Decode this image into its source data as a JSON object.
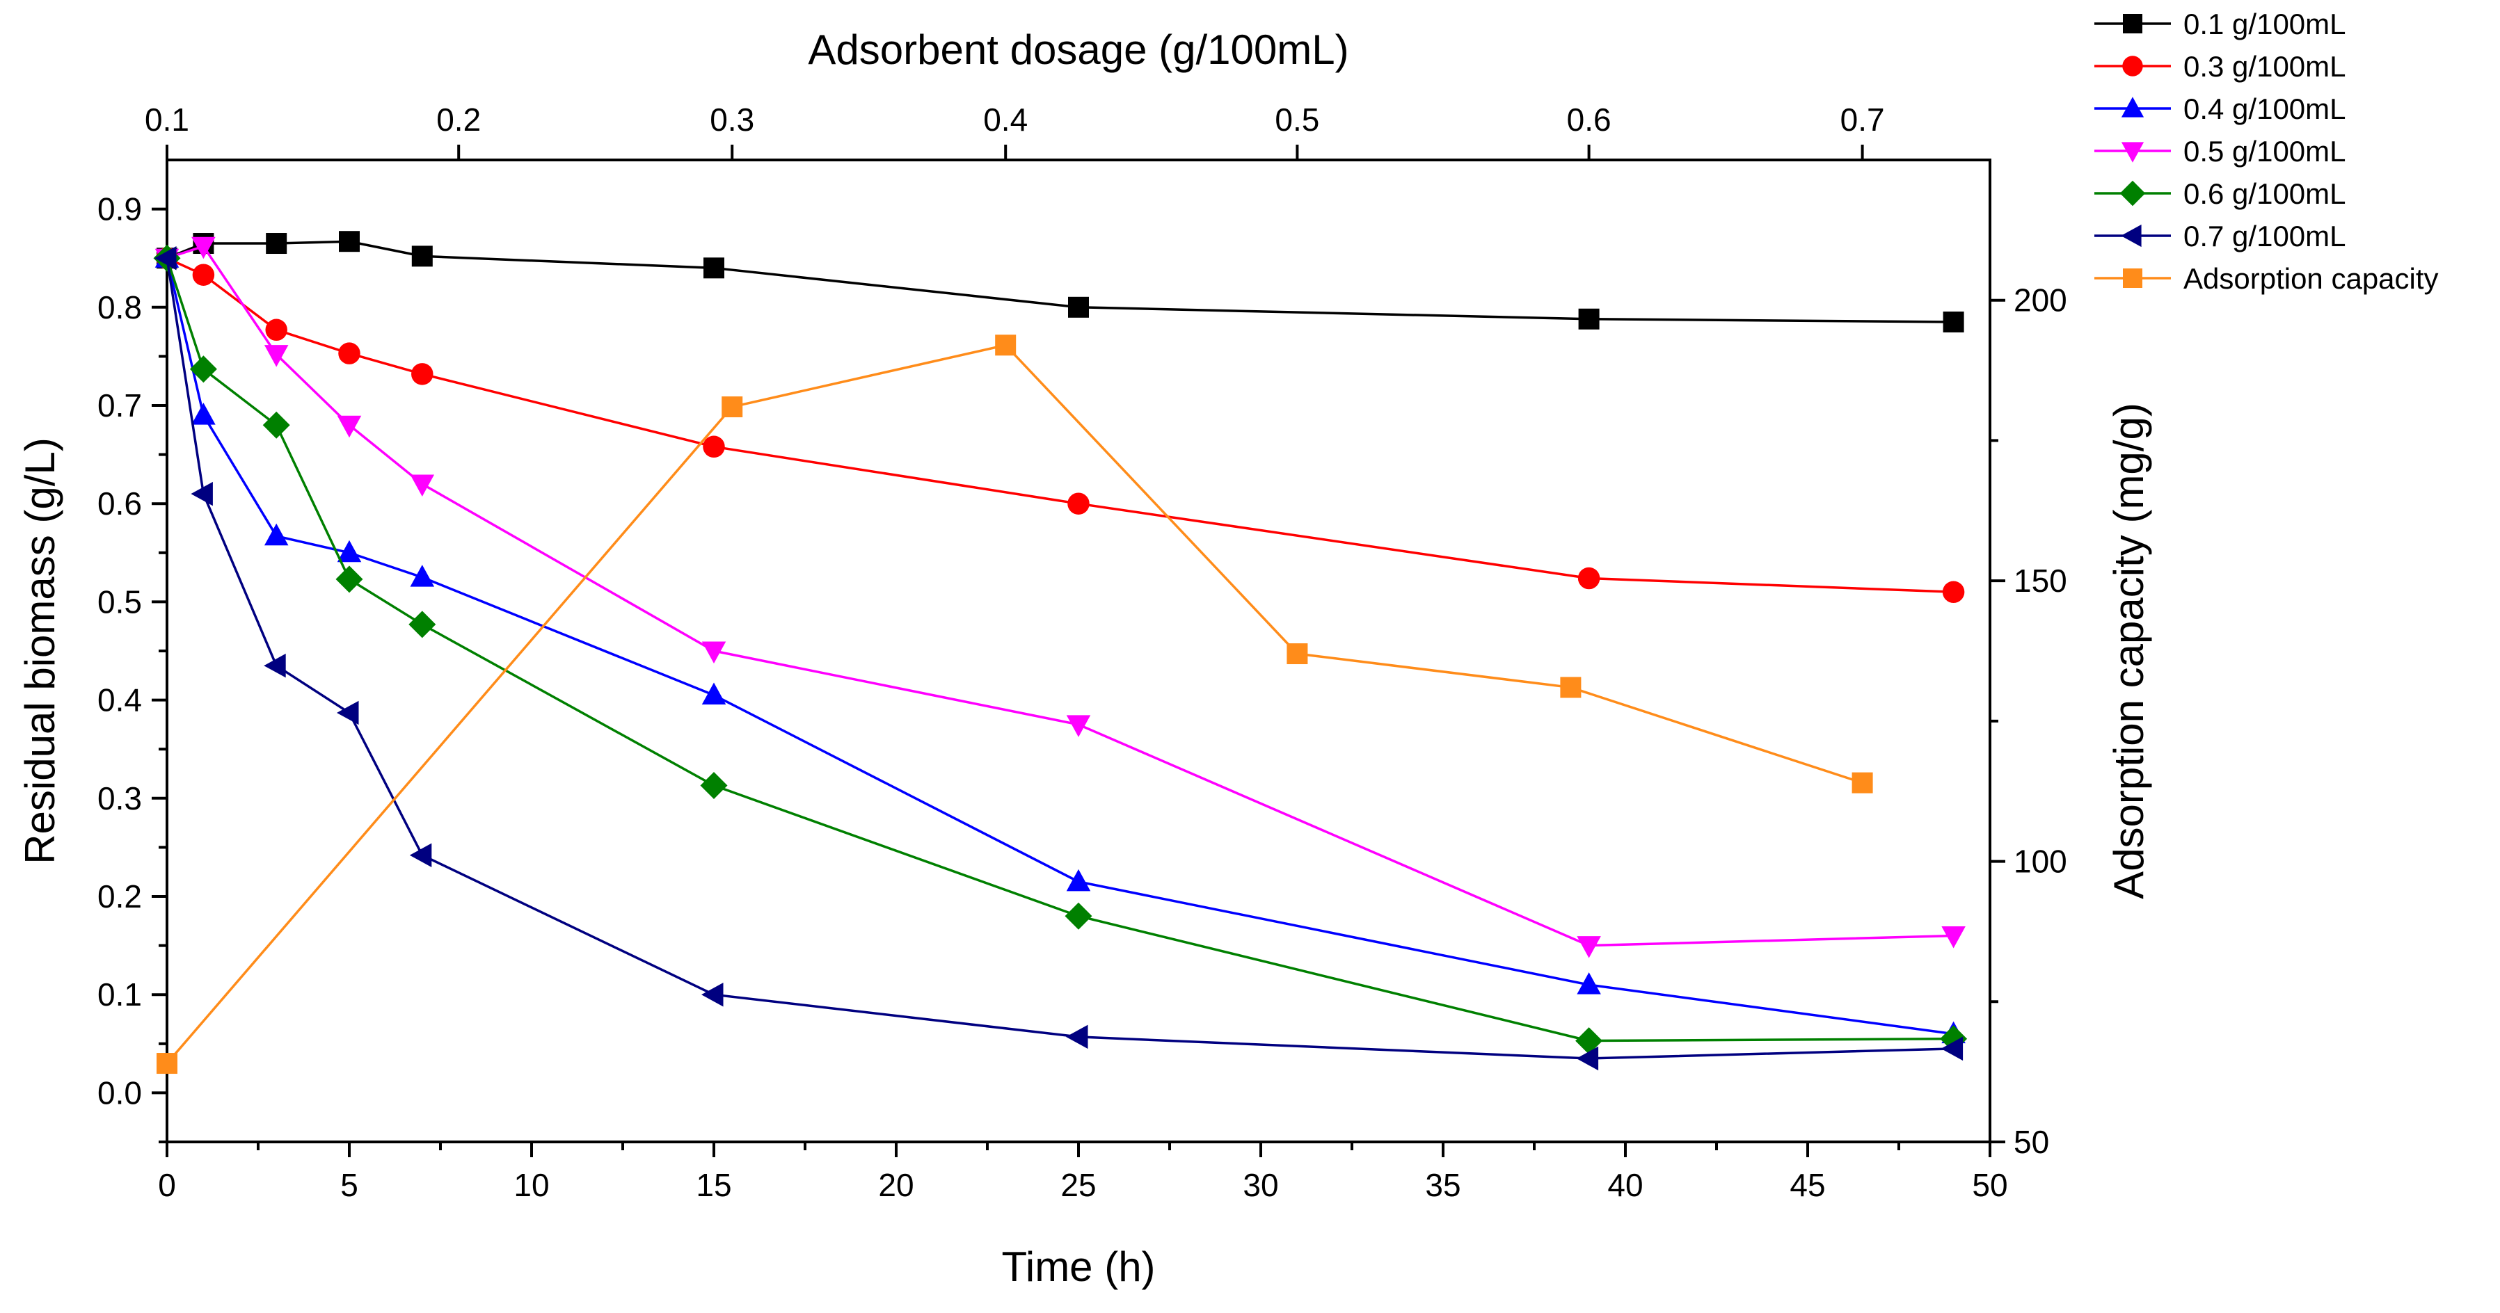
{
  "chart_data": {
    "type": "line",
    "x_bottom": {
      "label": "Time (h)",
      "lim": [
        0,
        50
      ],
      "ticks": [
        0,
        5,
        10,
        15,
        20,
        25,
        30,
        35,
        40,
        45,
        50
      ]
    },
    "x_top": {
      "label": "Adsorbent dosage (g/100mL)",
      "ticks": [
        {
          "label": "0.1",
          "time": 0
        },
        {
          "label": "0.2",
          "time": 8
        },
        {
          "label": "0.3",
          "time": 15.5
        },
        {
          "label": "0.4",
          "time": 23
        },
        {
          "label": "0.5",
          "time": 31
        },
        {
          "label": "0.6",
          "time": 39
        },
        {
          "label": "0.7",
          "time": 46.5
        }
      ]
    },
    "y_left": {
      "label": "Residual biomass (g/L)",
      "lim": [
        -0.05,
        0.95
      ],
      "ticks": [
        0.0,
        0.1,
        0.2,
        0.3,
        0.4,
        0.5,
        0.6,
        0.7,
        0.8,
        0.9
      ]
    },
    "y_right": {
      "label": "Adsorption capacity (mg/g)",
      "lim": [
        50,
        225
      ],
      "ticks": [
        50,
        100,
        150,
        200
      ]
    },
    "grid": false,
    "legend_position": "outside-top-right",
    "series": [
      {
        "name": "0.1 g/100mL",
        "axis": "left",
        "color": "#000000",
        "marker": "square",
        "x": [
          0,
          1,
          3,
          5,
          7,
          15,
          25,
          39,
          49
        ],
        "y": [
          0.85,
          0.865,
          0.865,
          0.867,
          0.852,
          0.84,
          0.8,
          0.788,
          0.785
        ]
      },
      {
        "name": "0.3 g/100mL",
        "axis": "left",
        "color": "#ff0000",
        "marker": "circle",
        "x": [
          0,
          1,
          3,
          5,
          7,
          15,
          25,
          39,
          49
        ],
        "y": [
          0.85,
          0.833,
          0.777,
          0.753,
          0.732,
          0.658,
          0.6,
          0.524,
          0.51
        ]
      },
      {
        "name": "0.4 g/100mL",
        "axis": "left",
        "color": "#0000ff",
        "marker": "triangle-up",
        "x": [
          0,
          1,
          3,
          5,
          7,
          15,
          25,
          39,
          49
        ],
        "y": [
          0.85,
          0.69,
          0.567,
          0.55,
          0.525,
          0.405,
          0.215,
          0.11,
          0.06
        ]
      },
      {
        "name": "0.5 g/100mL",
        "axis": "left",
        "color": "#ff00ff",
        "marker": "triangle-down",
        "x": [
          0,
          1,
          3,
          5,
          7,
          15,
          25,
          39,
          49
        ],
        "y": [
          0.85,
          0.862,
          0.752,
          0.68,
          0.62,
          0.45,
          0.375,
          0.15,
          0.16
        ]
      },
      {
        "name": "0.6 g/100mL",
        "axis": "left",
        "color": "#008000",
        "marker": "diamond",
        "x": [
          0,
          1,
          3,
          5,
          7,
          15,
          25,
          39,
          49
        ],
        "y": [
          0.85,
          0.737,
          0.68,
          0.523,
          0.477,
          0.313,
          0.18,
          0.053,
          0.055
        ]
      },
      {
        "name": "0.7 g/100mL",
        "axis": "left",
        "color": "#000080",
        "marker": "triangle-left",
        "x": [
          0,
          1,
          3,
          5,
          7,
          15,
          25,
          39,
          49
        ],
        "y": [
          0.85,
          0.61,
          0.435,
          0.387,
          0.242,
          0.1,
          0.057,
          0.035,
          0.045
        ]
      },
      {
        "name": "Adsorption capacity",
        "axis": "right",
        "color": "#ff8c1a",
        "marker": "square",
        "x_axis": "top",
        "x": [
          0,
          15.5,
          23,
          31,
          38.5,
          46.5
        ],
        "y": [
          64,
          181,
          192,
          137,
          131,
          114
        ]
      }
    ]
  }
}
